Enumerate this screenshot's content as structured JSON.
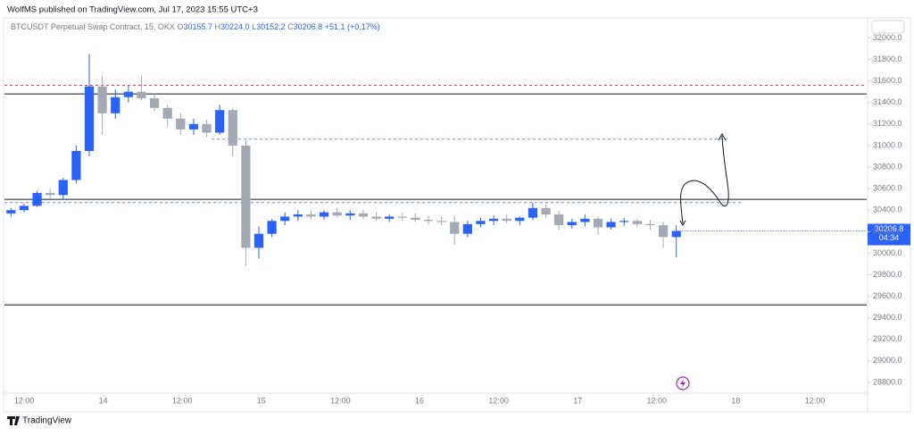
{
  "header": {
    "title": "WolfMS published on TradingView.com, Jul 17, 2023 15:55 UTC+3"
  },
  "footer": {
    "brand": "TradingView"
  },
  "chart_data": {
    "type": "candlestick",
    "symbol": "BTCUSDT Perpetual Swap Contract, 15, OKX",
    "legend_values": [
      {
        "key": "O",
        "value": "30155.7"
      },
      {
        "key": "H",
        "value": "30224.0"
      },
      {
        "key": "L",
        "value": "30152.2"
      },
      {
        "key": "C",
        "value": "30206.8"
      }
    ],
    "change": "+51.1 (+0.17%)",
    "countdown": "04:34",
    "x_labels": [
      "12:00",
      "14",
      "12:00",
      "15",
      "12:00",
      "16",
      "12:00",
      "17",
      "12:00",
      "18",
      "12:00"
    ],
    "open": [
      30370,
      30400,
      30440,
      30560,
      30540,
      30680,
      30950,
      31550,
      31300,
      31450,
      31500,
      31440,
      31350,
      31250,
      31150,
      31200,
      31120,
      31330,
      31000,
      30050,
      30180,
      30300,
      30340,
      30360,
      30340,
      30380,
      30350,
      30370,
      30340,
      30320,
      30340,
      30330,
      30310,
      30300,
      30290,
      30180,
      30270,
      30300,
      30320,
      30300,
      30330,
      30420,
      30360,
      30260,
      30290,
      30320,
      30240,
      30290,
      30300,
      30270,
      30260,
      30150
    ],
    "high": [
      30420,
      30460,
      30580,
      30600,
      30700,
      31000,
      31850,
      31650,
      31520,
      31560,
      31650,
      31480,
      31380,
      31300,
      31250,
      31240,
      31380,
      31350,
      31050,
      30250,
      30320,
      30380,
      30400,
      30400,
      30400,
      30420,
      30400,
      30400,
      30380,
      30360,
      30380,
      30370,
      30350,
      30340,
      30350,
      30300,
      30330,
      30350,
      30360,
      30340,
      30470,
      30450,
      30390,
      30320,
      30360,
      30340,
      30320,
      30330,
      30320,
      30310,
      30290,
      30260
    ],
    "low": [
      30340,
      30380,
      30430,
      30510,
      30500,
      30650,
      30900,
      31100,
      31250,
      31400,
      31420,
      31320,
      31180,
      31100,
      31100,
      31080,
      31100,
      30900,
      29880,
      29950,
      30150,
      30260,
      30300,
      30320,
      30310,
      30330,
      30310,
      30320,
      30300,
      30290,
      30300,
      30290,
      30270,
      30260,
      30080,
      30150,
      30240,
      30260,
      30280,
      30260,
      30310,
      30330,
      30220,
      30230,
      30250,
      30170,
      30220,
      30250,
      30240,
      30220,
      30050,
      29960
    ],
    "close": [
      30400,
      30440,
      30560,
      30540,
      30680,
      30950,
      31550,
      31300,
      31450,
      31500,
      31440,
      31350,
      31250,
      31150,
      31200,
      31120,
      31330,
      31000,
      30050,
      30180,
      30300,
      30340,
      30360,
      30340,
      30380,
      30350,
      30370,
      30340,
      30320,
      30340,
      30330,
      30310,
      30300,
      30290,
      30180,
      30270,
      30300,
      30320,
      30300,
      30330,
      30420,
      30360,
      30260,
      30290,
      30320,
      30240,
      30290,
      30300,
      30270,
      30260,
      30150,
      30206.8
    ],
    "up_color": "#2962ff",
    "down_color": "#a5a9b4",
    "levels": [
      {
        "value": 31560,
        "color": "#f23645",
        "dashed": true
      },
      {
        "value": 31480,
        "color": "#131722",
        "dashed": false
      },
      {
        "value": 31060,
        "color": "#7986cb",
        "dashed": true
      },
      {
        "value": 30500,
        "color": "#131722",
        "dashed": false
      },
      {
        "value": 30470,
        "color": "#7986cb",
        "dashed": true
      },
      {
        "value": 29520,
        "color": "#131722",
        "dashed": false
      }
    ],
    "ylim": [
      28700,
      32170
    ],
    "yticks": [
      {
        "value": 32000,
        "label": "32000.0"
      },
      {
        "value": 31800,
        "label": "31800.0"
      },
      {
        "value": 31600,
        "label": "31600.0"
      },
      {
        "value": 31400,
        "label": "31400.0"
      },
      {
        "value": 31200,
        "label": "31200.0"
      },
      {
        "value": 31000,
        "label": "31000.0"
      },
      {
        "value": 30800,
        "label": "30800.0"
      },
      {
        "value": 30600,
        "label": "30600.0"
      },
      {
        "value": 30400,
        "label": "30400.0"
      },
      {
        "value": 30200,
        "label": "30200.0"
      },
      {
        "value": 30000,
        "label": "30000.0"
      },
      {
        "value": 29800,
        "label": "29800.0"
      },
      {
        "value": 29600,
        "label": "29600.0"
      },
      {
        "value": 29400,
        "label": "29400.0"
      },
      {
        "value": 29200,
        "label": "29200.0"
      },
      {
        "value": 29000,
        "label": "29000.0"
      },
      {
        "value": 28800,
        "label": "28800.0"
      }
    ],
    "grid": false
  }
}
